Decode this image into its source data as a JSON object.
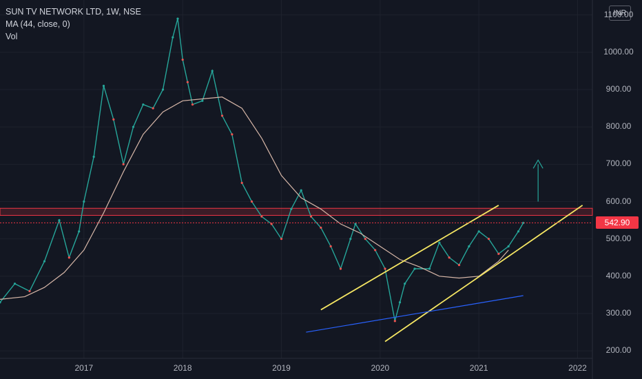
{
  "legend": {
    "symbol": "SUN TV NETWORK LTD, 1W, NSE",
    "ma": "MA (44, close, 0)",
    "vol": "Vol"
  },
  "currency": "INR",
  "last_price": "542.90",
  "colors": {
    "background": "#131722",
    "up": "#26a69a",
    "down": "#ef5350",
    "ma": "#d7b7a8",
    "channel": "#f5e663",
    "zone": "#f23645",
    "vol_trend": "#2962ff",
    "annotation": "#26a69a"
  },
  "chart_data": {
    "type": "line",
    "title": "SUN TV NETWORK LTD, 1W, NSE",
    "ylim": [
      180,
      1140
    ],
    "yticks": [
      "1100.00",
      "1000.00",
      "900.00",
      "800.00",
      "700.00",
      "600.00",
      "500.00",
      "400.00",
      "300.00",
      "200.00"
    ],
    "ytick_values": [
      1100,
      1000,
      900,
      800,
      700,
      600,
      500,
      400,
      300,
      200
    ],
    "xlim": [
      2016.15,
      2022.15
    ],
    "xticks": [
      "2017",
      "2018",
      "2019",
      "2020",
      "2021",
      "2022"
    ],
    "xtick_values": [
      2017,
      2018,
      2019,
      2020,
      2021,
      2022
    ],
    "series": [
      {
        "name": "SUN TV NETWORK LTD",
        "x": [
          2016.15,
          2016.3,
          2016.45,
          2016.6,
          2016.75,
          2016.85,
          2016.95,
          2017.0,
          2017.1,
          2017.2,
          2017.3,
          2017.4,
          2017.5,
          2017.6,
          2017.7,
          2017.8,
          2017.9,
          2017.95,
          2018.0,
          2018.05,
          2018.1,
          2018.2,
          2018.3,
          2018.4,
          2018.5,
          2018.6,
          2018.7,
          2018.8,
          2018.9,
          2019.0,
          2019.1,
          2019.2,
          2019.3,
          2019.4,
          2019.5,
          2019.6,
          2019.7,
          2019.75,
          2019.85,
          2019.95,
          2020.05,
          2020.15,
          2020.2,
          2020.25,
          2020.35,
          2020.5,
          2020.6,
          2020.7,
          2020.8,
          2020.9,
          2021.0,
          2021.1,
          2021.2,
          2021.3,
          2021.4,
          2021.45
        ],
        "values": [
          330,
          380,
          360,
          440,
          550,
          450,
          520,
          600,
          720,
          910,
          820,
          700,
          800,
          860,
          850,
          900,
          1040,
          1090,
          980,
          920,
          860,
          870,
          950,
          830,
          780,
          650,
          600,
          560,
          540,
          500,
          580,
          630,
          560,
          530,
          480,
          420,
          500,
          540,
          500,
          470,
          420,
          280,
          330,
          380,
          420,
          420,
          490,
          450,
          430,
          480,
          520,
          500,
          460,
          480,
          520,
          542.9
        ]
      },
      {
        "name": "MA (44, close, 0)",
        "x": [
          2016.15,
          2016.4,
          2016.6,
          2016.8,
          2017.0,
          2017.2,
          2017.4,
          2017.6,
          2017.8,
          2018.0,
          2018.2,
          2018.4,
          2018.6,
          2018.8,
          2019.0,
          2019.2,
          2019.4,
          2019.6,
          2019.8,
          2020.0,
          2020.2,
          2020.4,
          2020.6,
          2020.8,
          2021.0,
          2021.2,
          2021.3
        ],
        "values": [
          338,
          345,
          370,
          410,
          470,
          570,
          680,
          780,
          840,
          870,
          875,
          880,
          850,
          770,
          670,
          610,
          580,
          540,
          515,
          480,
          445,
          425,
          400,
          395,
          400,
          440,
          470
        ]
      }
    ],
    "annotations": [
      {
        "name": "channel-upper",
        "x": [
          2019.4,
          2021.2
        ],
        "values": [
          310,
          590
        ]
      },
      {
        "name": "channel-lower",
        "x": [
          2020.05,
          2022.05
        ],
        "values": [
          225,
          590
        ]
      },
      {
        "name": "resistance-zone",
        "ymin": 563,
        "ymax": 582
      },
      {
        "name": "volume-trendline",
        "x": [
          2019.25,
          2021.45
        ],
        "values": [
          250,
          348
        ]
      }
    ]
  }
}
